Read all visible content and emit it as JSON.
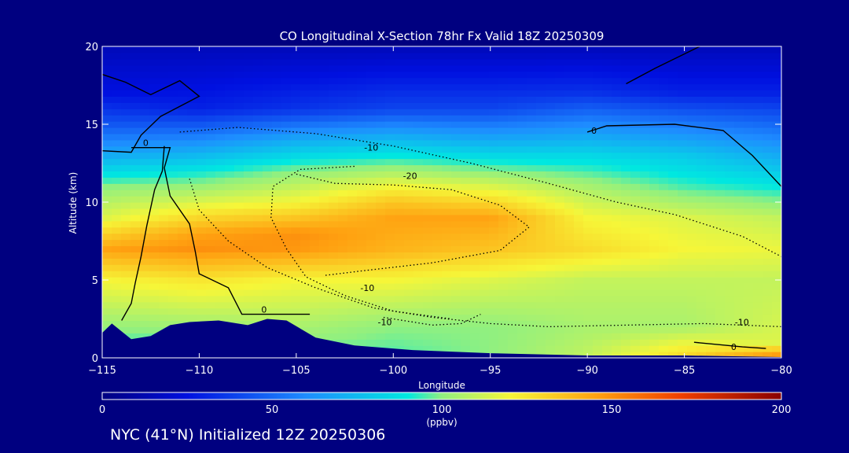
{
  "chart_data": {
    "type": "heatmap",
    "title": "CO Longitudinal X-Section 78hr  Fx Valid 18Z 20250309",
    "xlabel": "Longitude",
    "ylabel": "Altitude (km)",
    "xlim": [
      -115,
      -80
    ],
    "ylim": [
      0,
      20
    ],
    "x_ticks": [
      -115,
      -110,
      -105,
      -100,
      -95,
      -90,
      -85,
      -80
    ],
    "x_tick_labels": [
      "−115",
      "−110",
      "−105",
      "−100",
      "−95",
      "−90",
      "−85",
      "−80"
    ],
    "y_ticks": [
      0,
      5,
      10,
      15,
      20
    ],
    "y_tick_labels": [
      "0",
      "5",
      "10",
      "15",
      "20"
    ],
    "colorbar": {
      "min": 0,
      "max": 200,
      "ticks": [
        0,
        50,
        100,
        150,
        200
      ],
      "tick_labels": [
        "0",
        "50",
        "100",
        "150",
        "200"
      ],
      "unit": "(ppbv)"
    },
    "field": {
      "description_units": "ppbv",
      "profiles": [
        {
          "lon": -115,
          "values": [
            [
              0,
              95
            ],
            [
              1,
              95
            ],
            [
              5,
              120
            ],
            [
              7,
              145
            ],
            [
              9,
              115
            ],
            [
              11,
              100
            ],
            [
              13,
              70
            ],
            [
              15,
              45
            ],
            [
              17,
              25
            ],
            [
              20,
              15
            ]
          ]
        },
        {
          "lon": -110,
          "values": [
            [
              0,
              95
            ],
            [
              1,
              95
            ],
            [
              5,
              125
            ],
            [
              7,
              150
            ],
            [
              8,
              145
            ],
            [
              10,
              115
            ],
            [
              12,
              90
            ],
            [
              14,
              60
            ],
            [
              16,
              30
            ],
            [
              20,
              15
            ]
          ]
        },
        {
          "lon": -105,
          "values": [
            [
              0,
              95
            ],
            [
              1,
              100
            ],
            [
              5,
              120
            ],
            [
              7,
              148
            ],
            [
              8,
              150
            ],
            [
              10,
              120
            ],
            [
              12,
              100
            ],
            [
              14,
              70
            ],
            [
              16,
              35
            ],
            [
              20,
              15
            ]
          ]
        },
        {
          "lon": -100,
          "values": [
            [
              0,
              95
            ],
            [
              2,
              100
            ],
            [
              5,
              120
            ],
            [
              7,
              140
            ],
            [
              9,
              145
            ],
            [
              10,
              135
            ],
            [
              12,
              105
            ],
            [
              14,
              75
            ],
            [
              16,
              40
            ],
            [
              20,
              15
            ]
          ]
        },
        {
          "lon": -95,
          "values": [
            [
              0,
              100
            ],
            [
              2,
              100
            ],
            [
              5,
              115
            ],
            [
              7,
              135
            ],
            [
              9,
              145
            ],
            [
              10,
              130
            ],
            [
              12,
              100
            ],
            [
              14,
              70
            ],
            [
              16,
              40
            ],
            [
              20,
              15
            ]
          ]
        },
        {
          "lon": -90,
          "values": [
            [
              0,
              110
            ],
            [
              2,
              105
            ],
            [
              5,
              110
            ],
            [
              7,
              128
            ],
            [
              9,
              120
            ],
            [
              11,
              105
            ],
            [
              13,
              85
            ],
            [
              15,
              60
            ],
            [
              17,
              35
            ],
            [
              20,
              15
            ]
          ]
        },
        {
          "lon": -85,
          "values": [
            [
              0,
              130
            ],
            [
              2,
              105
            ],
            [
              5,
              110
            ],
            [
              7,
              120
            ],
            [
              9,
              115
            ],
            [
              11,
              95
            ],
            [
              13,
              80
            ],
            [
              15,
              55
            ],
            [
              17,
              30
            ],
            [
              20,
              15
            ]
          ]
        },
        {
          "lon": -80,
          "values": [
            [
              0,
              155
            ],
            [
              1,
              115
            ],
            [
              5,
              110
            ],
            [
              7,
              118
            ],
            [
              9,
              110
            ],
            [
              11,
              90
            ],
            [
              13,
              70
            ],
            [
              15,
              50
            ],
            [
              17,
              30
            ],
            [
              20,
              15
            ]
          ]
        }
      ]
    },
    "contours": [
      {
        "label": "0",
        "style": "solid"
      },
      {
        "label": "-10",
        "style": "dotted"
      },
      {
        "label": "-20",
        "style": "dotted"
      }
    ],
    "terrain": [
      [
        -115,
        1.6
      ],
      [
        -114.5,
        2.2
      ],
      [
        -113.5,
        1.2
      ],
      [
        -112.5,
        1.4
      ],
      [
        -111.5,
        2.1
      ],
      [
        -110.5,
        2.3
      ],
      [
        -109,
        2.4
      ],
      [
        -107.5,
        2.1
      ],
      [
        -106.5,
        2.5
      ],
      [
        -105.5,
        2.4
      ],
      [
        -104,
        1.3
      ],
      [
        -102,
        0.8
      ],
      [
        -99,
        0.5
      ],
      [
        -95,
        0.3
      ],
      [
        -90,
        0.15
      ],
      [
        -85,
        0.15
      ],
      [
        -80,
        0.05
      ]
    ]
  },
  "footer": "NYC (41°N) Initialized 12Z 20250306",
  "colors": {
    "background": "#000080",
    "text": "#ffffff",
    "terrain": "#000080",
    "contour": "#000000"
  }
}
